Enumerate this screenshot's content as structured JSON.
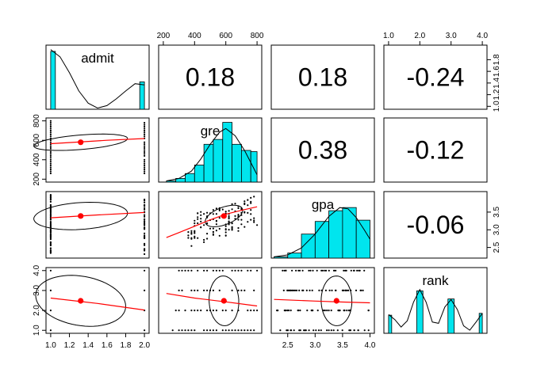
{
  "chart_data": {
    "type": "scatter-matrix",
    "variables": [
      "admit",
      "gre",
      "gpa",
      "rank"
    ],
    "correlations": [
      {
        "row": 0,
        "col": 1,
        "label": "0.18"
      },
      {
        "row": 0,
        "col": 2,
        "label": "0.18"
      },
      {
        "row": 0,
        "col": 3,
        "label": "-0.24"
      },
      {
        "row": 1,
        "col": 2,
        "label": "0.38"
      },
      {
        "row": 1,
        "col": 3,
        "label": "-0.12"
      },
      {
        "row": 2,
        "col": 3,
        "label": "-0.06"
      }
    ],
    "ranges": {
      "admit": [
        0.95,
        2.05
      ],
      "gre": [
        170,
        830
      ],
      "gpa": [
        2.2,
        4.08
      ],
      "rank": [
        0.85,
        4.15
      ]
    },
    "top_ticks": [
      {
        "col": 1,
        "values": [
          200,
          400,
          600,
          800
        ],
        "labels": [
          "200",
          "400",
          "600",
          "800"
        ]
      },
      {
        "col": 3,
        "values": [
          1.0,
          2.0,
          3.0,
          4.0
        ],
        "labels": [
          "1.0",
          "2.0",
          "3.0",
          "4.0"
        ]
      }
    ],
    "bottom_ticks": [
      {
        "col": 0,
        "values": [
          1.0,
          1.2,
          1.4,
          1.6,
          1.8,
          2.0
        ],
        "labels": [
          "1.0",
          "1.2",
          "1.4",
          "1.6",
          "1.8",
          "2.0"
        ]
      },
      {
        "col": 2,
        "values": [
          2.5,
          3.0,
          3.5,
          4.0
        ],
        "labels": [
          "2.5",
          "3.0",
          "3.5",
          "4.0"
        ]
      }
    ],
    "left_ticks": [
      {
        "row": 1,
        "values": [
          200,
          400,
          600,
          800
        ],
        "labels": [
          "200",
          "400",
          "600",
          "800"
        ]
      },
      {
        "row": 3,
        "values": [
          1.0,
          2.0,
          3.0,
          4.0
        ],
        "labels": [
          "1.0",
          "2.0",
          "3.0",
          "4.0"
        ]
      }
    ],
    "right_ticks": [
      {
        "row": 0,
        "values": [
          1.0,
          1.2,
          1.4,
          1.6,
          1.8
        ],
        "labels": [
          "1.0",
          "1.2",
          "1.4",
          "1.6",
          "1.8"
        ]
      },
      {
        "row": 2,
        "values": [
          2.5,
          3.0,
          3.5
        ],
        "labels": [
          "2.5",
          "3.0",
          "3.5"
        ]
      }
    ],
    "histograms": {
      "admit": {
        "edges": [
          1.0,
          1.05,
          1.95,
          2.0
        ],
        "heights": [
          0.95,
          0.0,
          0.45
        ],
        "max": 1.0
      },
      "gre": {
        "edges": [
          220,
          280,
          340,
          400,
          460,
          520,
          580,
          640,
          700,
          760,
          800
        ],
        "heights": [
          0.02,
          0.06,
          0.14,
          0.28,
          0.62,
          0.7,
          0.98,
          0.62,
          0.52,
          0.5
        ],
        "max": 1.0
      },
      "gpa": {
        "edges": [
          2.25,
          2.5,
          2.75,
          3.0,
          3.25,
          3.5,
          3.75,
          4.0
        ],
        "heights": [
          0.02,
          0.08,
          0.38,
          0.58,
          0.75,
          0.8,
          0.6
        ],
        "max": 1.0
      },
      "rank": {
        "edges": [
          1.0,
          1.1,
          1.9,
          2.1,
          2.9,
          3.1,
          3.9,
          4.0
        ],
        "heights": [
          0.29,
          0.0,
          0.68,
          0.0,
          0.55,
          0.0,
          0.32
        ],
        "max": 1.0
      }
    },
    "densities": {
      "admit": {
        "x": [
          1.0,
          1.1,
          1.2,
          1.3,
          1.4,
          1.5,
          1.6,
          1.7,
          1.8,
          1.9,
          2.0
        ],
        "y": [
          0.98,
          0.86,
          0.6,
          0.3,
          0.1,
          0.02,
          0.06,
          0.17,
          0.3,
          0.42,
          0.4
        ]
      },
      "gre": {
        "x": [
          220,
          300,
          380,
          440,
          500,
          560,
          600,
          660,
          720,
          780,
          800
        ],
        "y": [
          0.02,
          0.06,
          0.18,
          0.38,
          0.62,
          0.82,
          0.88,
          0.76,
          0.52,
          0.22,
          0.12
        ]
      },
      "gpa": {
        "x": [
          2.25,
          2.5,
          2.75,
          3.0,
          3.25,
          3.45,
          3.6,
          3.75,
          3.9,
          4.0
        ],
        "y": [
          0.02,
          0.05,
          0.16,
          0.38,
          0.66,
          0.8,
          0.78,
          0.64,
          0.44,
          0.3
        ]
      },
      "rank": {
        "x": [
          1.0,
          1.2,
          1.4,
          1.6,
          1.8,
          2.0,
          2.2,
          2.4,
          2.6,
          2.8,
          3.0,
          3.2,
          3.4,
          3.6,
          3.8,
          4.0
        ],
        "y": [
          0.3,
          0.22,
          0.1,
          0.2,
          0.5,
          0.7,
          0.5,
          0.18,
          0.16,
          0.42,
          0.54,
          0.38,
          0.12,
          0.05,
          0.18,
          0.32
        ]
      }
    },
    "scatter_panels": [
      {
        "row": 1,
        "col": 0,
        "x": "admit",
        "y": "gre",
        "center": [
          1.32,
          580
        ],
        "ellipse_half_extents": [
          0.5,
          75
        ],
        "ellipse_tilt": 0.08,
        "loess": [
          [
            1.0,
            565
          ],
          [
            1.3,
            582
          ],
          [
            1.6,
            600
          ],
          [
            2.0,
            618
          ]
        ]
      },
      {
        "row": 2,
        "col": 0,
        "x": "admit",
        "y": "gpa",
        "center": [
          1.32,
          3.39
        ],
        "ellipse_half_extents": [
          0.5,
          0.38
        ],
        "ellipse_tilt": 0.06,
        "loess": [
          [
            1.0,
            3.34
          ],
          [
            1.5,
            3.42
          ],
          [
            2.0,
            3.49
          ]
        ]
      },
      {
        "row": 2,
        "col": 1,
        "x": "gre",
        "y": "gpa",
        "center": [
          588,
          3.39
        ],
        "ellipse_half_extents": [
          120,
          0.26
        ],
        "ellipse_tilt": 0.3,
        "loess": [
          [
            220,
            2.78
          ],
          [
            300,
            2.92
          ],
          [
            400,
            3.1
          ],
          [
            500,
            3.28
          ],
          [
            600,
            3.44
          ],
          [
            700,
            3.55
          ],
          [
            800,
            3.65
          ]
        ]
      },
      {
        "row": 3,
        "col": 0,
        "x": "admit",
        "y": "rank",
        "center": [
          1.32,
          2.48
        ],
        "ellipse_half_extents": [
          0.48,
          1.25
        ],
        "ellipse_tilt": -0.12,
        "loess": [
          [
            1.0,
            2.62
          ],
          [
            1.5,
            2.35
          ],
          [
            2.0,
            2.02
          ]
        ]
      },
      {
        "row": 3,
        "col": 1,
        "x": "gre",
        "y": "rank",
        "center": [
          588,
          2.48
        ],
        "ellipse_half_extents": [
          95,
          1.25
        ],
        "ellipse_tilt": -0.08,
        "loess": [
          [
            220,
            2.85
          ],
          [
            400,
            2.62
          ],
          [
            600,
            2.43
          ],
          [
            800,
            2.22
          ]
        ]
      },
      {
        "row": 3,
        "col": 2,
        "x": "gpa",
        "y": "rank",
        "center": [
          3.39,
          2.48
        ],
        "ellipse_half_extents": [
          0.28,
          1.25
        ],
        "ellipse_tilt": -0.03,
        "loess": [
          [
            2.25,
            2.55
          ],
          [
            3.0,
            2.47
          ],
          [
            3.5,
            2.42
          ],
          [
            4.0,
            2.38
          ]
        ]
      }
    ],
    "colors": {
      "histogram_fill": "#00e5ee",
      "fit_line": "#ff0000",
      "center_point": "#ff0000",
      "points": "#000000",
      "frame": "#000000"
    }
  }
}
